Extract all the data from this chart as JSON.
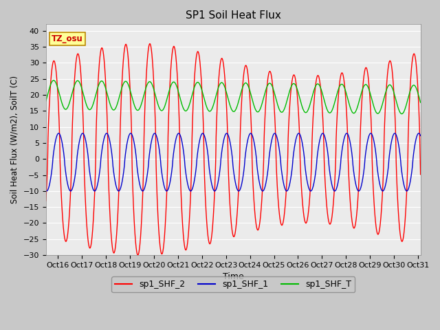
{
  "title": "SP1 Soil Heat Flux",
  "xlabel": "Time",
  "ylabel": "Soil Heat Flux (W/m2), SoilT (C)",
  "xlim_days": [
    15.5,
    31.1
  ],
  "ylim": [
    -30,
    42
  ],
  "yticks": [
    -30,
    -25,
    -20,
    -15,
    -10,
    -5,
    0,
    5,
    10,
    15,
    20,
    25,
    30,
    35,
    40
  ],
  "xtick_positions": [
    16,
    17,
    18,
    19,
    20,
    21,
    22,
    23,
    24,
    25,
    26,
    27,
    28,
    29,
    30,
    31
  ],
  "xtick_labels": [
    "Oct 16",
    "Oct 17",
    "Oct 18",
    "Oct 19",
    "Oct 20",
    "Oct 21",
    "Oct 22",
    "Oct 23",
    "Oct 24",
    "Oct 25",
    "Oct 26",
    "Oct 27",
    "Oct 28",
    "Oct 29",
    "Oct 30",
    "Oct 31"
  ],
  "color_red": "#FF0000",
  "color_blue": "#0000CC",
  "color_green": "#00BB00",
  "fig_bg": "#C8C8C8",
  "plot_bg": "#EBEBEB",
  "grid_color": "#FFFFFF",
  "legend_labels": [
    "sp1_SHF_2",
    "sp1_SHF_1",
    "sp1_SHF_T"
  ],
  "tz_label": "TZ_osu",
  "tz_box_color": "#FFFF99",
  "tz_border_color": "#BB8800"
}
